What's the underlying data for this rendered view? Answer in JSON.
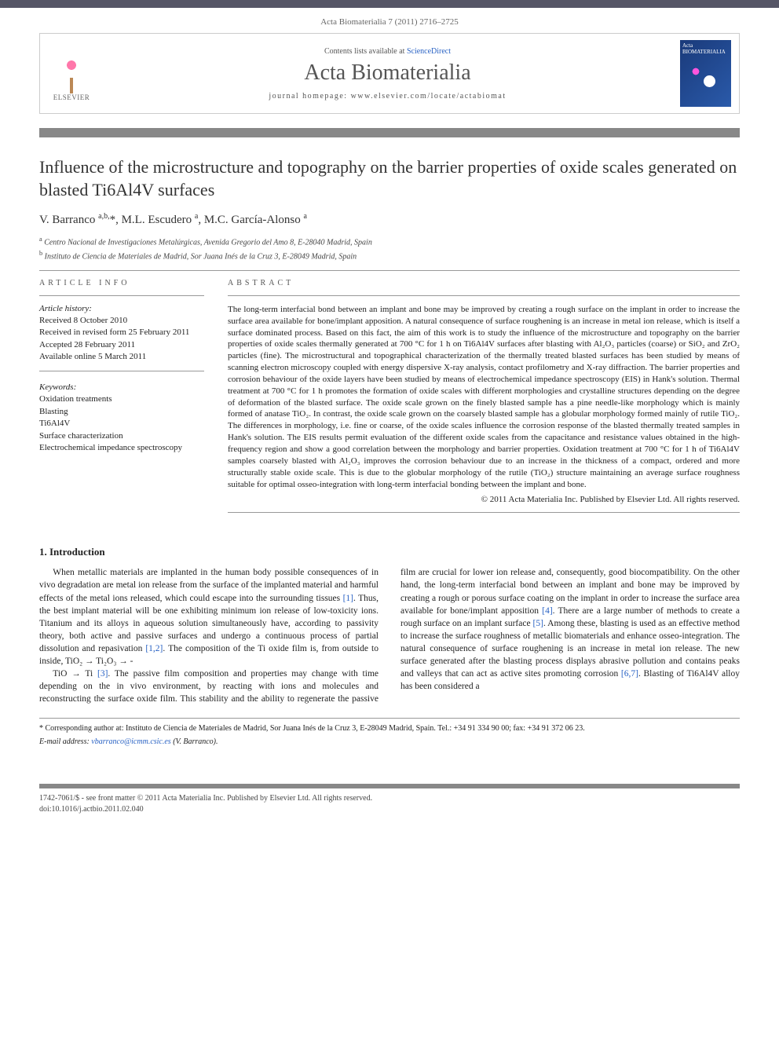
{
  "journal_ref": "Acta Biomaterialia 7 (2011) 2716–2725",
  "header": {
    "publisher_name": "ELSEVIER",
    "contents_prefix": "Contents lists available at ",
    "contents_link": "ScienceDirect",
    "journal_name": "Acta Biomaterialia",
    "homepage_prefix": "journal homepage: ",
    "homepage_url": "www.elsevier.com/locate/actabiomat",
    "cover_label": "Acta BIOMATERIALIA"
  },
  "article": {
    "title": "Influence of the microstructure and topography on the barrier properties of oxide scales generated on blasted Ti6Al4V surfaces",
    "authors_html": "V. Barranco <sup>a,b,</sup><span class='star'>*</span>, M.L. Escudero <sup>a</sup>, M.C. García-Alonso <sup>a</sup>",
    "affiliations": [
      {
        "label": "a",
        "text": "Centro Nacional de Investigaciones Metalúrgicas, Avenida Gregorio del Amo 8, E-28040 Madrid, Spain"
      },
      {
        "label": "b",
        "text": "Instituto de Ciencia de Materiales de Madrid, Sor Juana Inés de la Cruz 3, E-28049 Madrid, Spain"
      }
    ]
  },
  "info": {
    "heading": "ARTICLE INFO",
    "history_label": "Article history:",
    "history": [
      "Received 8 October 2010",
      "Received in revised form 25 February 2011",
      "Accepted 28 February 2011",
      "Available online 5 March 2011"
    ],
    "keywords_label": "Keywords:",
    "keywords": [
      "Oxidation treatments",
      "Blasting",
      "Ti6Al4V",
      "Surface characterization",
      "Electrochemical impedance spectroscopy"
    ]
  },
  "abstract": {
    "heading": "ABSTRACT",
    "text": "The long-term interfacial bond between an implant and bone may be improved by creating a rough surface on the implant in order to increase the surface area available for bone/implant apposition. A natural consequence of surface roughening is an increase in metal ion release, which is itself a surface dominated process. Based on this fact, the aim of this work is to study the influence of the microstructure and topography on the barrier properties of oxide scales thermally generated at 700 °C for 1 h on Ti6Al4V surfaces after blasting with Al₂O₃ particles (coarse) or SiO₂ and ZrO₂ particles (fine). The microstructural and topographical characterization of the thermally treated blasted surfaces has been studied by means of scanning electron microscopy coupled with energy dispersive X-ray analysis, contact profilometry and X-ray diffraction. The barrier properties and corrosion behaviour of the oxide layers have been studied by means of electrochemical impedance spectroscopy (EIS) in Hank's solution. Thermal treatment at 700 °C for 1 h promotes the formation of oxide scales with different morphologies and crystalline structures depending on the degree of deformation of the blasted surface. The oxide scale grown on the finely blasted sample has a pine needle-like morphology which is mainly formed of anatase TiO₂. In contrast, the oxide scale grown on the coarsely blasted sample has a globular morphology formed mainly of rutile TiO₂. The differences in morphology, i.e. fine or coarse, of the oxide scales influence the corrosion response of the blasted thermally treated samples in Hank's solution. The EIS results permit evaluation of the different oxide scales from the capacitance and resistance values obtained in the high-frequency region and show a good correlation between the morphology and barrier properties. Oxidation treatment at 700 °C for 1 h of Ti6Al4V samples coarsely blasted with Al₂O₃ improves the corrosion behaviour due to an increase in the thickness of a compact, ordered and more structurally stable oxide scale. This is due to the globular morphology of the rutile (TiO₂) structure maintaining an average surface roughness suitable for optimal osseo-integration with long-term interfacial bonding between the implant and bone.",
    "copyright": "© 2011 Acta Materialia Inc. Published by Elsevier Ltd. All rights reserved."
  },
  "body": {
    "section_number": "1.",
    "section_title": "Introduction",
    "para1": "When metallic materials are implanted in the human body possible consequences of in vivo degradation are metal ion release from the surface of the implanted material and harmful effects of the metal ions released, which could escape into the surrounding tissues [1]. Thus, the best implant material will be one exhibiting minimum ion release of low-toxicity ions. Titanium and its alloys in aqueous solution simultaneously have, according to passivity theory, both active and passive surfaces and undergo a continuous process of partial dissolution and repasivation [1,2]. The composition of the Ti oxide film is, from outside to inside, TiO₂ → Ti₂O₃ → -",
    "para2": "TiO → Ti [3]. The passive film composition and properties may change with time depending on the in vivo environment, by reacting with ions and molecules and reconstructing the surface oxide film. This stability and the ability to regenerate the passive film are crucial for lower ion release and, consequently, good biocompatibility. On the other hand, the long-term interfacial bond between an implant and bone may be improved by creating a rough or porous surface coating on the implant in order to increase the surface area available for bone/implant apposition [4]. There are a large number of methods to create a rough surface on an implant surface [5]. Among these, blasting is used as an effective method to increase the surface roughness of metallic biomaterials and enhance osseo-integration. The natural consequence of surface roughening is an increase in metal ion release. The new surface generated after the blasting process displays abrasive pollution and contains peaks and valleys that can act as active sites promoting corrosion [6,7]. Blasting of Ti6Al4V alloy has been considered a"
  },
  "footnotes": {
    "corresponding": "* Corresponding author at: Instituto de Ciencia de Materiales de Madrid, Sor Juana Inés de la Cruz 3, E-28049 Madrid, Spain. Tel.: +34 91 334 90 00; fax: +34 91 372 06 23.",
    "email_label": "E-mail address:",
    "email": "vbarranco@icmm.csic.es",
    "email_name": "(V. Barranco)."
  },
  "footer": {
    "line1": "1742-7061/$ - see front matter © 2011 Acta Materialia Inc. Published by Elsevier Ltd. All rights reserved.",
    "line2": "doi:10.1016/j.actbio.2011.02.040"
  },
  "colors": {
    "link": "#2962c4",
    "rule": "#999999",
    "bar": "#888888",
    "topbar": "#556677"
  }
}
